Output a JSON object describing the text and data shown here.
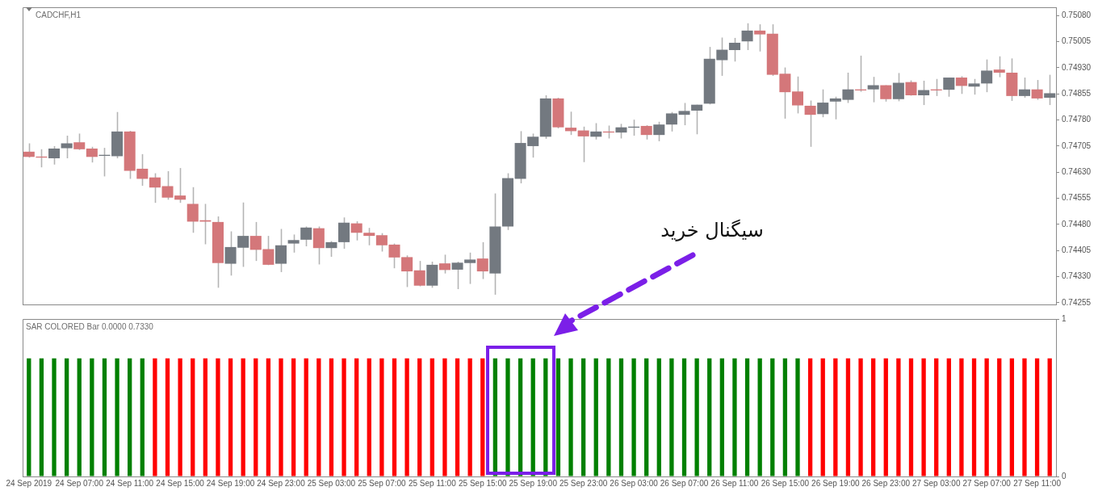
{
  "chart_data": [
    {
      "type": "candlestick",
      "title": "CADCHF,H1",
      "annotations": [
        "سیگنال خرید"
      ],
      "tick_labels": "y",
      "legend": false,
      "grid": false,
      "categories": [
        null,
        null,
        null,
        null,
        null,
        null,
        null,
        null,
        null,
        null,
        null,
        null,
        null,
        null,
        null,
        null,
        null,
        null,
        null,
        null,
        null,
        null,
        null,
        null,
        null,
        null,
        null,
        null,
        null,
        null,
        null,
        null,
        null,
        null,
        null,
        null,
        null,
        null,
        null,
        null,
        null,
        null,
        null,
        null,
        null,
        null,
        null,
        null,
        null,
        null,
        null,
        null,
        null,
        null,
        null,
        null,
        null,
        null,
        null,
        null,
        null,
        null,
        null,
        null,
        null,
        null,
        null,
        null,
        null,
        null,
        null,
        null,
        null,
        null,
        null,
        null,
        null,
        null,
        null,
        null,
        null,
        null
      ],
      "ylim": [
        0.7425,
        0.75104
      ],
      "yticks": [
        {
          "value": 0.7508,
          "label": "0.75080"
        },
        {
          "value": 0.75005,
          "label": "0.75005"
        },
        {
          "value": 0.7493,
          "label": "0.74930"
        },
        {
          "value": 0.74855,
          "label": "0.74855"
        },
        {
          "value": 0.7478,
          "label": "0.74780"
        },
        {
          "value": 0.74705,
          "label": "0.74705"
        },
        {
          "value": 0.7463,
          "label": "0.74630"
        },
        {
          "value": 0.74555,
          "label": "0.74555"
        },
        {
          "value": 0.7448,
          "label": "0.74480"
        },
        {
          "value": 0.74405,
          "label": "0.74405"
        },
        {
          "value": 0.7433,
          "label": "0.74330"
        },
        {
          "value": 0.74255,
          "label": "0.74255"
        }
      ],
      "colors": [
        "#d4777a",
        "#d4777a",
        "#737980",
        "#737980",
        "#d4777a",
        "#d4777a",
        "#737980",
        "#737980",
        "#d4777a",
        "#d4777a",
        "#d4777a",
        "#d4777a",
        "#d4777a",
        "#d4777a",
        "#d4777a",
        "#d4777a",
        "#737980",
        "#737980",
        "#d4777a",
        "#d4777a",
        "#737980",
        "#737980",
        "#737980",
        "#d4777a",
        "#737980",
        "#737980",
        "#d4777a",
        "#d4777a",
        "#d4777a",
        "#d4777a",
        "#d4777a",
        "#d4777a",
        "#737980",
        "#d4777a",
        "#737980",
        "#737980",
        "#d4777a",
        "#737980",
        "#737980",
        "#737980",
        "#737980",
        "#737980",
        "#d4777a",
        "#d4777a",
        "#d4777a",
        "#737980",
        "#d4777a",
        "#737980",
        "#737980",
        "#d4777a",
        "#737980",
        "#737980",
        "#737980",
        "#737980",
        "#737980",
        "#737980",
        "#737980",
        "#737980",
        "#d4777a",
        "#d4777a",
        "#d4777a",
        "#d4777a",
        "#d4777a",
        "#737980",
        "#737980",
        "#737980",
        "#d4777a",
        "#737980",
        "#d4777a",
        "#737980",
        "#d4777a",
        "#737980",
        "#d4777a",
        "#737980",
        "#d4777a",
        "#737980",
        "#737980",
        "#d4777a",
        "#d4777a",
        "#737980",
        "#d4777a",
        "#737980"
      ],
      "ohlc": [
        [
          0.74689,
          0.74713,
          0.74672,
          0.74674
        ],
        [
          0.74675,
          0.74696,
          0.74644,
          0.74672
        ],
        [
          0.7467,
          0.74705,
          0.74652,
          0.74698
        ],
        [
          0.74699,
          0.74735,
          0.7467,
          0.74713
        ],
        [
          0.74716,
          0.74741,
          0.74694,
          0.74696
        ],
        [
          0.74698,
          0.74703,
          0.74658,
          0.74674
        ],
        [
          0.74677,
          0.747,
          0.74618,
          0.7468
        ],
        [
          0.74676,
          0.74803,
          0.7467,
          0.74747
        ],
        [
          0.74747,
          0.74749,
          0.74611,
          0.74634
        ],
        [
          0.7464,
          0.74682,
          0.74591,
          0.74611
        ],
        [
          0.74615,
          0.74627,
          0.74542,
          0.74586
        ],
        [
          0.7459,
          0.74633,
          0.74551,
          0.74557
        ],
        [
          0.74563,
          0.74642,
          0.74542,
          0.74551
        ],
        [
          0.74539,
          0.74587,
          0.74456,
          0.74488
        ],
        [
          0.74492,
          0.74539,
          0.74423,
          0.74488
        ],
        [
          0.74487,
          0.74503,
          0.74298,
          0.74369
        ],
        [
          0.74367,
          0.7446,
          0.74333,
          0.74415
        ],
        [
          0.74413,
          0.74543,
          0.74358,
          0.74447
        ],
        [
          0.74447,
          0.74487,
          0.74375,
          0.74407
        ],
        [
          0.74409,
          0.74447,
          0.74363,
          0.74364
        ],
        [
          0.74367,
          0.74467,
          0.74343,
          0.7442
        ],
        [
          0.74425,
          0.74451,
          0.74399,
          0.74435
        ],
        [
          0.74436,
          0.74474,
          0.74417,
          0.74471
        ],
        [
          0.74469,
          0.74474,
          0.74365,
          0.74412
        ],
        [
          0.74412,
          0.74432,
          0.74387,
          0.74429
        ],
        [
          0.74429,
          0.745,
          0.7441,
          0.74485
        ],
        [
          0.74483,
          0.74489,
          0.74434,
          0.74456
        ],
        [
          0.74456,
          0.7447,
          0.7442,
          0.74447
        ],
        [
          0.74449,
          0.74455,
          0.74402,
          0.7442
        ],
        [
          0.74422,
          0.74425,
          0.74354,
          0.74385
        ],
        [
          0.74386,
          0.74391,
          0.743,
          0.74345
        ],
        [
          0.74348,
          0.74375,
          0.74302,
          0.74304
        ],
        [
          0.74304,
          0.74373,
          0.74298,
          0.74364
        ],
        [
          0.74368,
          0.74393,
          0.74339,
          0.74349
        ],
        [
          0.7435,
          0.74373,
          0.74294,
          0.7437
        ],
        [
          0.74369,
          0.74399,
          0.74309,
          0.74379
        ],
        [
          0.74382,
          0.74429,
          0.74323,
          0.74345
        ],
        [
          0.74339,
          0.74569,
          0.74278,
          0.74474
        ],
        [
          0.74474,
          0.74627,
          0.74464,
          0.74613
        ],
        [
          0.74611,
          0.74748,
          0.74598,
          0.74714
        ],
        [
          0.74705,
          0.74741,
          0.74672,
          0.74732
        ],
        [
          0.74732,
          0.74851,
          0.74726,
          0.74842
        ],
        [
          0.74842,
          0.74844,
          0.74756,
          0.74759
        ],
        [
          0.74758,
          0.74804,
          0.74737,
          0.74748
        ],
        [
          0.7475,
          0.74761,
          0.74659,
          0.74733
        ],
        [
          0.74732,
          0.74771,
          0.74724,
          0.74747
        ],
        [
          0.74747,
          0.74764,
          0.74727,
          0.74744
        ],
        [
          0.74744,
          0.74769,
          0.74727,
          0.74759
        ],
        [
          0.74758,
          0.74781,
          0.74735,
          0.74761
        ],
        [
          0.74763,
          0.74765,
          0.74724,
          0.74737
        ],
        [
          0.74737,
          0.74775,
          0.74719,
          0.74767
        ],
        [
          0.74767,
          0.74803,
          0.74747,
          0.74799
        ],
        [
          0.74795,
          0.74829,
          0.74765,
          0.74806
        ],
        [
          0.74807,
          0.74824,
          0.74739,
          0.74824
        ],
        [
          0.74827,
          0.7499,
          0.74825,
          0.74956
        ],
        [
          0.74952,
          0.75017,
          0.74907,
          0.74982
        ],
        [
          0.74981,
          0.75016,
          0.74948,
          0.75002
        ],
        [
          0.75006,
          0.75058,
          0.74981,
          0.75037
        ],
        [
          0.75037,
          0.75055,
          0.74977,
          0.75026
        ],
        [
          0.75028,
          0.75055,
          0.74907,
          0.7491
        ],
        [
          0.74913,
          0.74931,
          0.74784,
          0.7486
        ],
        [
          0.74862,
          0.74905,
          0.74799,
          0.74822
        ],
        [
          0.74821,
          0.74836,
          0.74703,
          0.74795
        ],
        [
          0.74797,
          0.74868,
          0.74788,
          0.7483
        ],
        [
          0.74833,
          0.74847,
          0.74782,
          0.74842
        ],
        [
          0.74838,
          0.74916,
          0.74829,
          0.74868
        ],
        [
          0.74868,
          0.74965,
          0.74861,
          0.74865
        ],
        [
          0.74868,
          0.74904,
          0.74831,
          0.7488
        ],
        [
          0.7488,
          0.7488,
          0.74833,
          0.7484
        ],
        [
          0.7484,
          0.74915,
          0.74834,
          0.74887
        ],
        [
          0.74889,
          0.74894,
          0.7485,
          0.74851
        ],
        [
          0.74851,
          0.74893,
          0.74823,
          0.74866
        ],
        [
          0.74868,
          0.74898,
          0.74849,
          0.74865
        ],
        [
          0.74867,
          0.74902,
          0.74847,
          0.74902
        ],
        [
          0.74902,
          0.74906,
          0.74855,
          0.74878
        ],
        [
          0.74876,
          0.74898,
          0.74853,
          0.74885
        ],
        [
          0.74885,
          0.74954,
          0.7486,
          0.74922
        ],
        [
          0.74925,
          0.74963,
          0.74903,
          0.74916
        ],
        [
          0.74916,
          0.74957,
          0.74835,
          0.74849
        ],
        [
          0.74849,
          0.74902,
          0.74844,
          0.74868
        ],
        [
          0.74868,
          0.74895,
          0.74838,
          0.74842
        ],
        [
          0.74844,
          0.7491,
          0.74823,
          0.74857
        ]
      ]
    },
    {
      "type": "bar",
      "title": "SAR COLORED Bar 0.0000 0.7330",
      "legend": false,
      "grid": false,
      "categories": [
        "24 Sep 2019",
        null,
        null,
        null,
        "24 Sep 07:00",
        null,
        null,
        null,
        "24 Sep 11:00",
        null,
        null,
        null,
        "24 Sep 15:00",
        null,
        null,
        null,
        "24 Sep 19:00",
        null,
        null,
        null,
        "24 Sep 23:00",
        null,
        null,
        null,
        "25 Sep 03:00",
        null,
        null,
        null,
        "25 Sep 07:00",
        null,
        null,
        null,
        "25 Sep 11:00",
        null,
        null,
        null,
        "25 Sep 15:00",
        null,
        null,
        null,
        "25 Sep 19:00",
        null,
        null,
        null,
        "25 Sep 23:00",
        null,
        null,
        null,
        "26 Sep 03:00",
        null,
        null,
        null,
        "26 Sep 07:00",
        null,
        null,
        null,
        "26 Sep 11:00",
        null,
        null,
        null,
        "26 Sep 15:00",
        null,
        null,
        null,
        "26 Sep 19:00",
        null,
        null,
        null,
        "26 Sep 23:00",
        null,
        null,
        null,
        "27 Sep 03:00",
        null,
        null,
        null,
        "27 Sep 07:00",
        null,
        null,
        null,
        "27 Sep 11:00",
        null
      ],
      "values": [
        0.75,
        0.75,
        0.75,
        0.75,
        0.75,
        0.75,
        0.75,
        0.75,
        0.75,
        0.75,
        0.75,
        0.75,
        0.75,
        0.75,
        0.75,
        0.75,
        0.75,
        0.75,
        0.75,
        0.75,
        0.75,
        0.75,
        0.75,
        0.75,
        0.75,
        0.75,
        0.75,
        0.75,
        0.75,
        0.75,
        0.75,
        0.75,
        0.75,
        0.75,
        0.75,
        0.75,
        0.75,
        0.75,
        0.75,
        0.75,
        0.75,
        0.75,
        0.75,
        0.75,
        0.75,
        0.75,
        0.75,
        0.75,
        0.75,
        0.75,
        0.75,
        0.75,
        0.75,
        0.75,
        0.75,
        0.75,
        0.75,
        0.75,
        0.75,
        0.75,
        0.75,
        0.75,
        0.75,
        0.75,
        0.75,
        0.75,
        0.75,
        0.75,
        0.75,
        0.75,
        0.75,
        0.75,
        0.75,
        0.75,
        0.75,
        0.75,
        0.75,
        0.75,
        0.75,
        0.75,
        0.75,
        0.75
      ],
      "colors": [
        "#008000",
        "#008000",
        "#008000",
        "#008000",
        "#008000",
        "#008000",
        "#008000",
        "#008000",
        "#008000",
        "#008000",
        "#ff0000",
        "#ff0000",
        "#ff0000",
        "#ff0000",
        "#ff0000",
        "#ff0000",
        "#ff0000",
        "#ff0000",
        "#ff0000",
        "#ff0000",
        "#ff0000",
        "#ff0000",
        "#ff0000",
        "#ff0000",
        "#ff0000",
        "#ff0000",
        "#ff0000",
        "#ff0000",
        "#ff0000",
        "#ff0000",
        "#ff0000",
        "#ff0000",
        "#ff0000",
        "#ff0000",
        "#ff0000",
        "#ff0000",
        "#ff0000",
        "#008000",
        "#008000",
        "#008000",
        "#008000",
        "#008000",
        "#008000",
        "#008000",
        "#008000",
        "#008000",
        "#008000",
        "#008000",
        "#008000",
        "#008000",
        "#008000",
        "#008000",
        "#008000",
        "#008000",
        "#008000",
        "#008000",
        "#008000",
        "#008000",
        "#008000",
        "#008000",
        "#008000",
        "#008000",
        "#ff0000",
        "#ff0000",
        "#ff0000",
        "#ff0000",
        "#ff0000",
        "#ff0000",
        "#ff0000",
        "#ff0000",
        "#ff0000",
        "#ff0000",
        "#ff0000",
        "#ff0000",
        "#ff0000",
        "#ff0000",
        "#ff0000",
        "#ff0000",
        "#ff0000",
        "#ff0000",
        "#ff0000",
        "#ff0000"
      ],
      "ylim": [
        0,
        1
      ],
      "yticks": [
        0,
        1
      ]
    }
  ]
}
